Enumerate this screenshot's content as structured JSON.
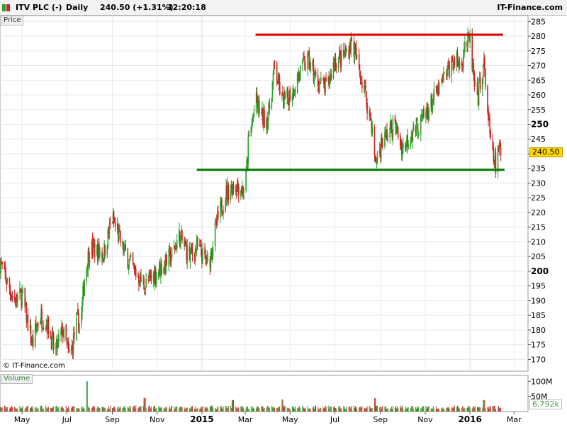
{
  "header": {
    "symbol": "ITV PLC (-)",
    "interval": "Daily",
    "last_price": "240.50 (+1.31%)",
    "time": "12:20:18",
    "brand": "IT-Finance.com"
  },
  "panels": {
    "price_label": "Price",
    "volume_label": "Volume",
    "copyright": "© IT-Finance.com",
    "last_price_tag": "240.50",
    "volume_tag": "6,792k"
  },
  "colors": {
    "up": "#2aa12a",
    "down": "#cc2222",
    "resistance": "#dd0000",
    "support": "#007a00",
    "volume": "#c1352b"
  },
  "chart_data": {
    "type": "candlestick",
    "title": "ITV PLC (-)",
    "ylabel": "Price",
    "ylim": [
      166,
      287
    ],
    "y_ticks": [
      170,
      175,
      180,
      185,
      190,
      195,
      200,
      205,
      210,
      215,
      220,
      225,
      230,
      235,
      240,
      245,
      250,
      255,
      260,
      265,
      270,
      275,
      280,
      285
    ],
    "y_major": [
      200,
      250
    ],
    "x_labels": [
      "May",
      "Jul",
      "Sep",
      "Nov",
      "2015",
      "Mar",
      "May",
      "Jul",
      "Sep",
      "Nov",
      "2016",
      "Mar"
    ],
    "x_major": [
      "2015",
      "2016"
    ],
    "x_range": [
      "2014-04-01",
      "2016-03-20"
    ],
    "x_tick_dates": [
      "2014-05-01",
      "2014-07-01",
      "2014-09-01",
      "2014-11-01",
      "2015-01-01",
      "2015-03-01",
      "2015-05-01",
      "2015-07-01",
      "2015-09-01",
      "2015-11-01",
      "2016-01-01",
      "2016-03-01"
    ],
    "path": [
      [
        "2014-04-01",
        203
      ],
      [
        "2014-04-20",
        190
      ],
      [
        "2014-05-01",
        192
      ],
      [
        "2014-05-15",
        175
      ],
      [
        "2014-05-25",
        185
      ],
      [
        "2014-06-05",
        182
      ],
      [
        "2014-06-15",
        172
      ],
      [
        "2014-06-25",
        180
      ],
      [
        "2014-07-05",
        170
      ],
      [
        "2014-07-15",
        183
      ],
      [
        "2014-07-20",
        182
      ],
      [
        "2014-07-25",
        198
      ],
      [
        "2014-08-01",
        208
      ],
      [
        "2014-08-20",
        206
      ],
      [
        "2014-09-01",
        218
      ],
      [
        "2014-09-15",
        208
      ],
      [
        "2014-10-01",
        200
      ],
      [
        "2014-10-15",
        195
      ],
      [
        "2014-11-01",
        200
      ],
      [
        "2014-11-20",
        205
      ],
      [
        "2014-12-01",
        212
      ],
      [
        "2014-12-15",
        205
      ],
      [
        "2014-12-25",
        208
      ],
      [
        "2015-01-10",
        202
      ],
      [
        "2015-01-20",
        215
      ],
      [
        "2015-02-01",
        226
      ],
      [
        "2015-02-15",
        230
      ],
      [
        "2015-02-25",
        228
      ],
      [
        "2015-03-01",
        228
      ],
      [
        "2015-03-05",
        243
      ],
      [
        "2015-03-15",
        258
      ],
      [
        "2015-03-25",
        252
      ],
      [
        "2015-04-01",
        252
      ],
      [
        "2015-04-10",
        270
      ],
      [
        "2015-04-20",
        258
      ],
      [
        "2015-04-25",
        258
      ],
      [
        "2015-05-05",
        262
      ],
      [
        "2015-05-15",
        268
      ],
      [
        "2015-05-25",
        272
      ],
      [
        "2015-06-05",
        265
      ],
      [
        "2015-06-20",
        262
      ],
      [
        "2015-07-01",
        272
      ],
      [
        "2015-07-10",
        272
      ],
      [
        "2015-07-20",
        276
      ],
      [
        "2015-07-25",
        278
      ],
      [
        "2015-08-01",
        270
      ],
      [
        "2015-08-10",
        262
      ],
      [
        "2015-08-20",
        250
      ],
      [
        "2015-08-25",
        237
      ],
      [
        "2015-09-05",
        245
      ],
      [
        "2015-09-20",
        250
      ],
      [
        "2015-10-01",
        242
      ],
      [
        "2015-10-15",
        248
      ],
      [
        "2015-10-25",
        250
      ],
      [
        "2015-11-05",
        255
      ],
      [
        "2015-11-20",
        262
      ],
      [
        "2015-12-01",
        268
      ],
      [
        "2015-12-10",
        272
      ],
      [
        "2015-12-20",
        270
      ],
      [
        "2015-12-25",
        278
      ],
      [
        "2016-01-01",
        278
      ],
      [
        "2016-01-05",
        268
      ],
      [
        "2016-01-10",
        255
      ],
      [
        "2016-01-15",
        265
      ],
      [
        "2016-01-20",
        270
      ],
      [
        "2016-01-25",
        255
      ],
      [
        "2016-01-30",
        240
      ],
      [
        "2016-02-05",
        236
      ],
      [
        "2016-02-10",
        242
      ],
      [
        "2016-02-12",
        240.5
      ]
    ],
    "resistance": {
      "value": 280.5,
      "from": "2015-03-15",
      "to": "2016-02-15"
    },
    "support": {
      "value": 234.5,
      "from": "2014-12-25",
      "to": "2016-02-17"
    },
    "volume": {
      "label": "Volume",
      "ticks": [
        "100M",
        "50M"
      ],
      "last": "6,792k",
      "spikes": [
        [
          "2014-07-28",
          100
        ],
        [
          "2014-10-15",
          45
        ],
        [
          "2015-02-12",
          38
        ],
        [
          "2015-04-20",
          40
        ],
        [
          "2015-08-24",
          44
        ],
        [
          "2016-01-20",
          38
        ]
      ]
    }
  }
}
